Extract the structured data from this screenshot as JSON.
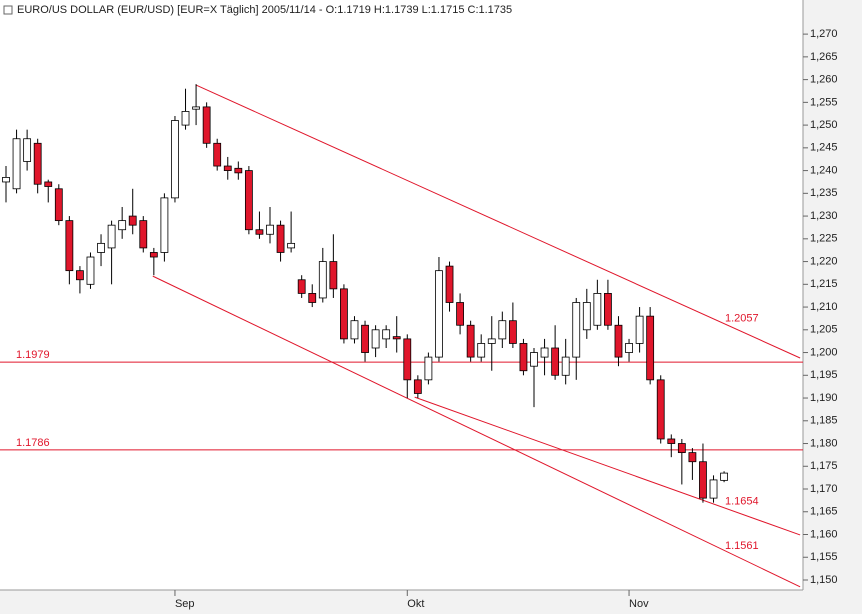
{
  "chart_data": {
    "type": "candlestick",
    "title": "EURO/US DOLLAR (EUR/USD) [EUR=X  Täglich] 2005/11/14 - O:1.1719 H:1.1739 L:1.1715 C:1.1735",
    "categories": [
      null,
      null,
      null,
      null,
      null,
      null,
      null,
      null,
      null,
      null,
      null,
      null,
      null,
      null,
      null,
      null,
      "Sep",
      null,
      null,
      null,
      null,
      null,
      null,
      null,
      null,
      null,
      null,
      null,
      null,
      null,
      null,
      null,
      null,
      null,
      null,
      null,
      null,
      null,
      "Okt",
      null,
      null,
      null,
      null,
      null,
      null,
      null,
      null,
      null,
      null,
      null,
      null,
      null,
      null,
      null,
      null,
      null,
      null,
      null,
      null,
      "Nov",
      null,
      null,
      null,
      null,
      null,
      null,
      null,
      null,
      null
    ],
    "open": [
      1.2375,
      1.236,
      1.242,
      1.246,
      1.2375,
      1.236,
      1.229,
      1.218,
      1.215,
      1.222,
      1.223,
      1.227,
      1.23,
      1.229,
      1.222,
      1.222,
      1.234,
      1.25,
      1.2535,
      1.254,
      1.246,
      1.241,
      1.2405,
      1.24,
      1.227,
      1.226,
      1.228,
      1.223,
      1.216,
      1.213,
      1.212,
      1.22,
      1.214,
      1.203,
      1.206,
      1.201,
      1.203,
      1.2035,
      1.203,
      1.194,
      1.194,
      1.199,
      1.219,
      1.211,
      1.206,
      1.199,
      1.202,
      1.203,
      1.207,
      1.202,
      1.197,
      1.199,
      1.201,
      1.195,
      1.199,
      1.205,
      1.206,
      1.213,
      1.206,
      1.2,
      1.202,
      1.208,
      1.194,
      1.181,
      1.18,
      1.178,
      1.176,
      1.168,
      1.1719
    ],
    "high": [
      1.241,
      1.249,
      1.249,
      1.247,
      1.238,
      1.237,
      1.23,
      1.219,
      1.222,
      1.226,
      1.229,
      1.232,
      1.236,
      1.23,
      1.223,
      1.235,
      1.252,
      1.258,
      1.259,
      1.255,
      1.247,
      1.243,
      1.242,
      1.241,
      1.231,
      1.232,
      1.229,
      1.231,
      1.217,
      1.215,
      1.223,
      1.226,
      1.215,
      1.208,
      1.207,
      1.206,
      1.206,
      1.208,
      1.204,
      1.195,
      1.2,
      1.221,
      1.22,
      1.213,
      1.207,
      1.204,
      1.208,
      1.209,
      1.211,
      1.203,
      1.201,
      1.203,
      1.206,
      1.203,
      1.212,
      1.214,
      1.216,
      1.216,
      1.208,
      1.203,
      1.21,
      1.21,
      1.195,
      1.182,
      1.181,
      1.179,
      1.18,
      1.173,
      1.1739
    ],
    "low": [
      1.233,
      1.235,
      1.24,
      1.235,
      1.233,
      1.228,
      1.215,
      1.213,
      1.214,
      1.219,
      1.215,
      1.225,
      1.226,
      1.222,
      1.217,
      1.22,
      1.233,
      1.249,
      1.25,
      1.245,
      1.24,
      1.238,
      1.238,
      1.226,
      1.225,
      1.224,
      1.22,
      1.222,
      1.212,
      1.21,
      1.211,
      1.212,
      1.202,
      1.202,
      1.198,
      1.199,
      1.201,
      1.2,
      1.19,
      1.19,
      1.193,
      1.198,
      1.209,
      1.204,
      1.198,
      1.198,
      1.196,
      1.201,
      1.201,
      1.195,
      1.188,
      1.195,
      1.194,
      1.193,
      1.194,
      1.203,
      1.205,
      1.205,
      1.197,
      1.198,
      1.2,
      1.193,
      1.18,
      1.177,
      1.171,
      1.172,
      1.167,
      1.167,
      1.1715
    ],
    "close": [
      1.2385,
      1.247,
      1.247,
      1.237,
      1.2365,
      1.229,
      1.218,
      1.216,
      1.221,
      1.224,
      1.228,
      1.229,
      1.228,
      1.223,
      1.221,
      1.234,
      1.251,
      1.253,
      1.254,
      1.246,
      1.241,
      1.24,
      1.2395,
      1.227,
      1.226,
      1.228,
      1.222,
      1.224,
      1.213,
      1.211,
      1.22,
      1.214,
      1.203,
      1.207,
      1.2,
      1.205,
      1.205,
      1.203,
      1.194,
      1.191,
      1.199,
      1.218,
      1.211,
      1.206,
      1.199,
      1.202,
      1.203,
      1.207,
      1.202,
      1.196,
      1.2,
      1.201,
      1.195,
      1.199,
      1.211,
      1.211,
      1.213,
      1.206,
      1.199,
      1.202,
      1.208,
      1.194,
      1.181,
      1.18,
      1.178,
      1.176,
      1.168,
      1.172,
      1.1735
    ],
    "up_color": "#ffffff",
    "down_color": "#e0162b",
    "line_color": "#e0162b",
    "ylim": [
      1.1478,
      1.2775
    ],
    "yticks": [
      {
        "value": 1.15,
        "label": "1,150"
      },
      {
        "value": 1.155,
        "label": "1,155"
      },
      {
        "value": 1.16,
        "label": "1,160"
      },
      {
        "value": 1.165,
        "label": "1,165"
      },
      {
        "value": 1.17,
        "label": "1,170"
      },
      {
        "value": 1.175,
        "label": "1,175"
      },
      {
        "value": 1.18,
        "label": "1,180"
      },
      {
        "value": 1.185,
        "label": "1,185"
      },
      {
        "value": 1.19,
        "label": "1,190"
      },
      {
        "value": 1.195,
        "label": "1,195"
      },
      {
        "value": 1.2,
        "label": "1,200"
      },
      {
        "value": 1.205,
        "label": "1,205"
      },
      {
        "value": 1.21,
        "label": "1,210"
      },
      {
        "value": 1.215,
        "label": "1,215"
      },
      {
        "value": 1.22,
        "label": "1,220"
      },
      {
        "value": 1.225,
        "label": "1,225"
      },
      {
        "value": 1.23,
        "label": "1,230"
      },
      {
        "value": 1.235,
        "label": "1,235"
      },
      {
        "value": 1.24,
        "label": "1,240"
      },
      {
        "value": 1.245,
        "label": "1,245"
      },
      {
        "value": 1.25,
        "label": "1,250"
      },
      {
        "value": 1.255,
        "label": "1,255"
      },
      {
        "value": 1.26,
        "label": "1,260"
      },
      {
        "value": 1.265,
        "label": "1,265"
      },
      {
        "value": 1.27,
        "label": "1,270"
      }
    ],
    "hlines": [
      1.1979,
      1.1786
    ],
    "trendlines": [
      {
        "x": [
          18,
          75.2
        ],
        "y": [
          1.2588,
          1.1988
        ],
        "label": 1.2057
      },
      {
        "x": [
          38.7,
          75.2
        ],
        "y": [
          1.1902,
          1.1599
        ],
        "label": 1.1654
      },
      {
        "x": [
          13.9,
          75.2
        ],
        "y": [
          1.2168,
          1.1485
        ],
        "label": 1.1561
      }
    ]
  }
}
